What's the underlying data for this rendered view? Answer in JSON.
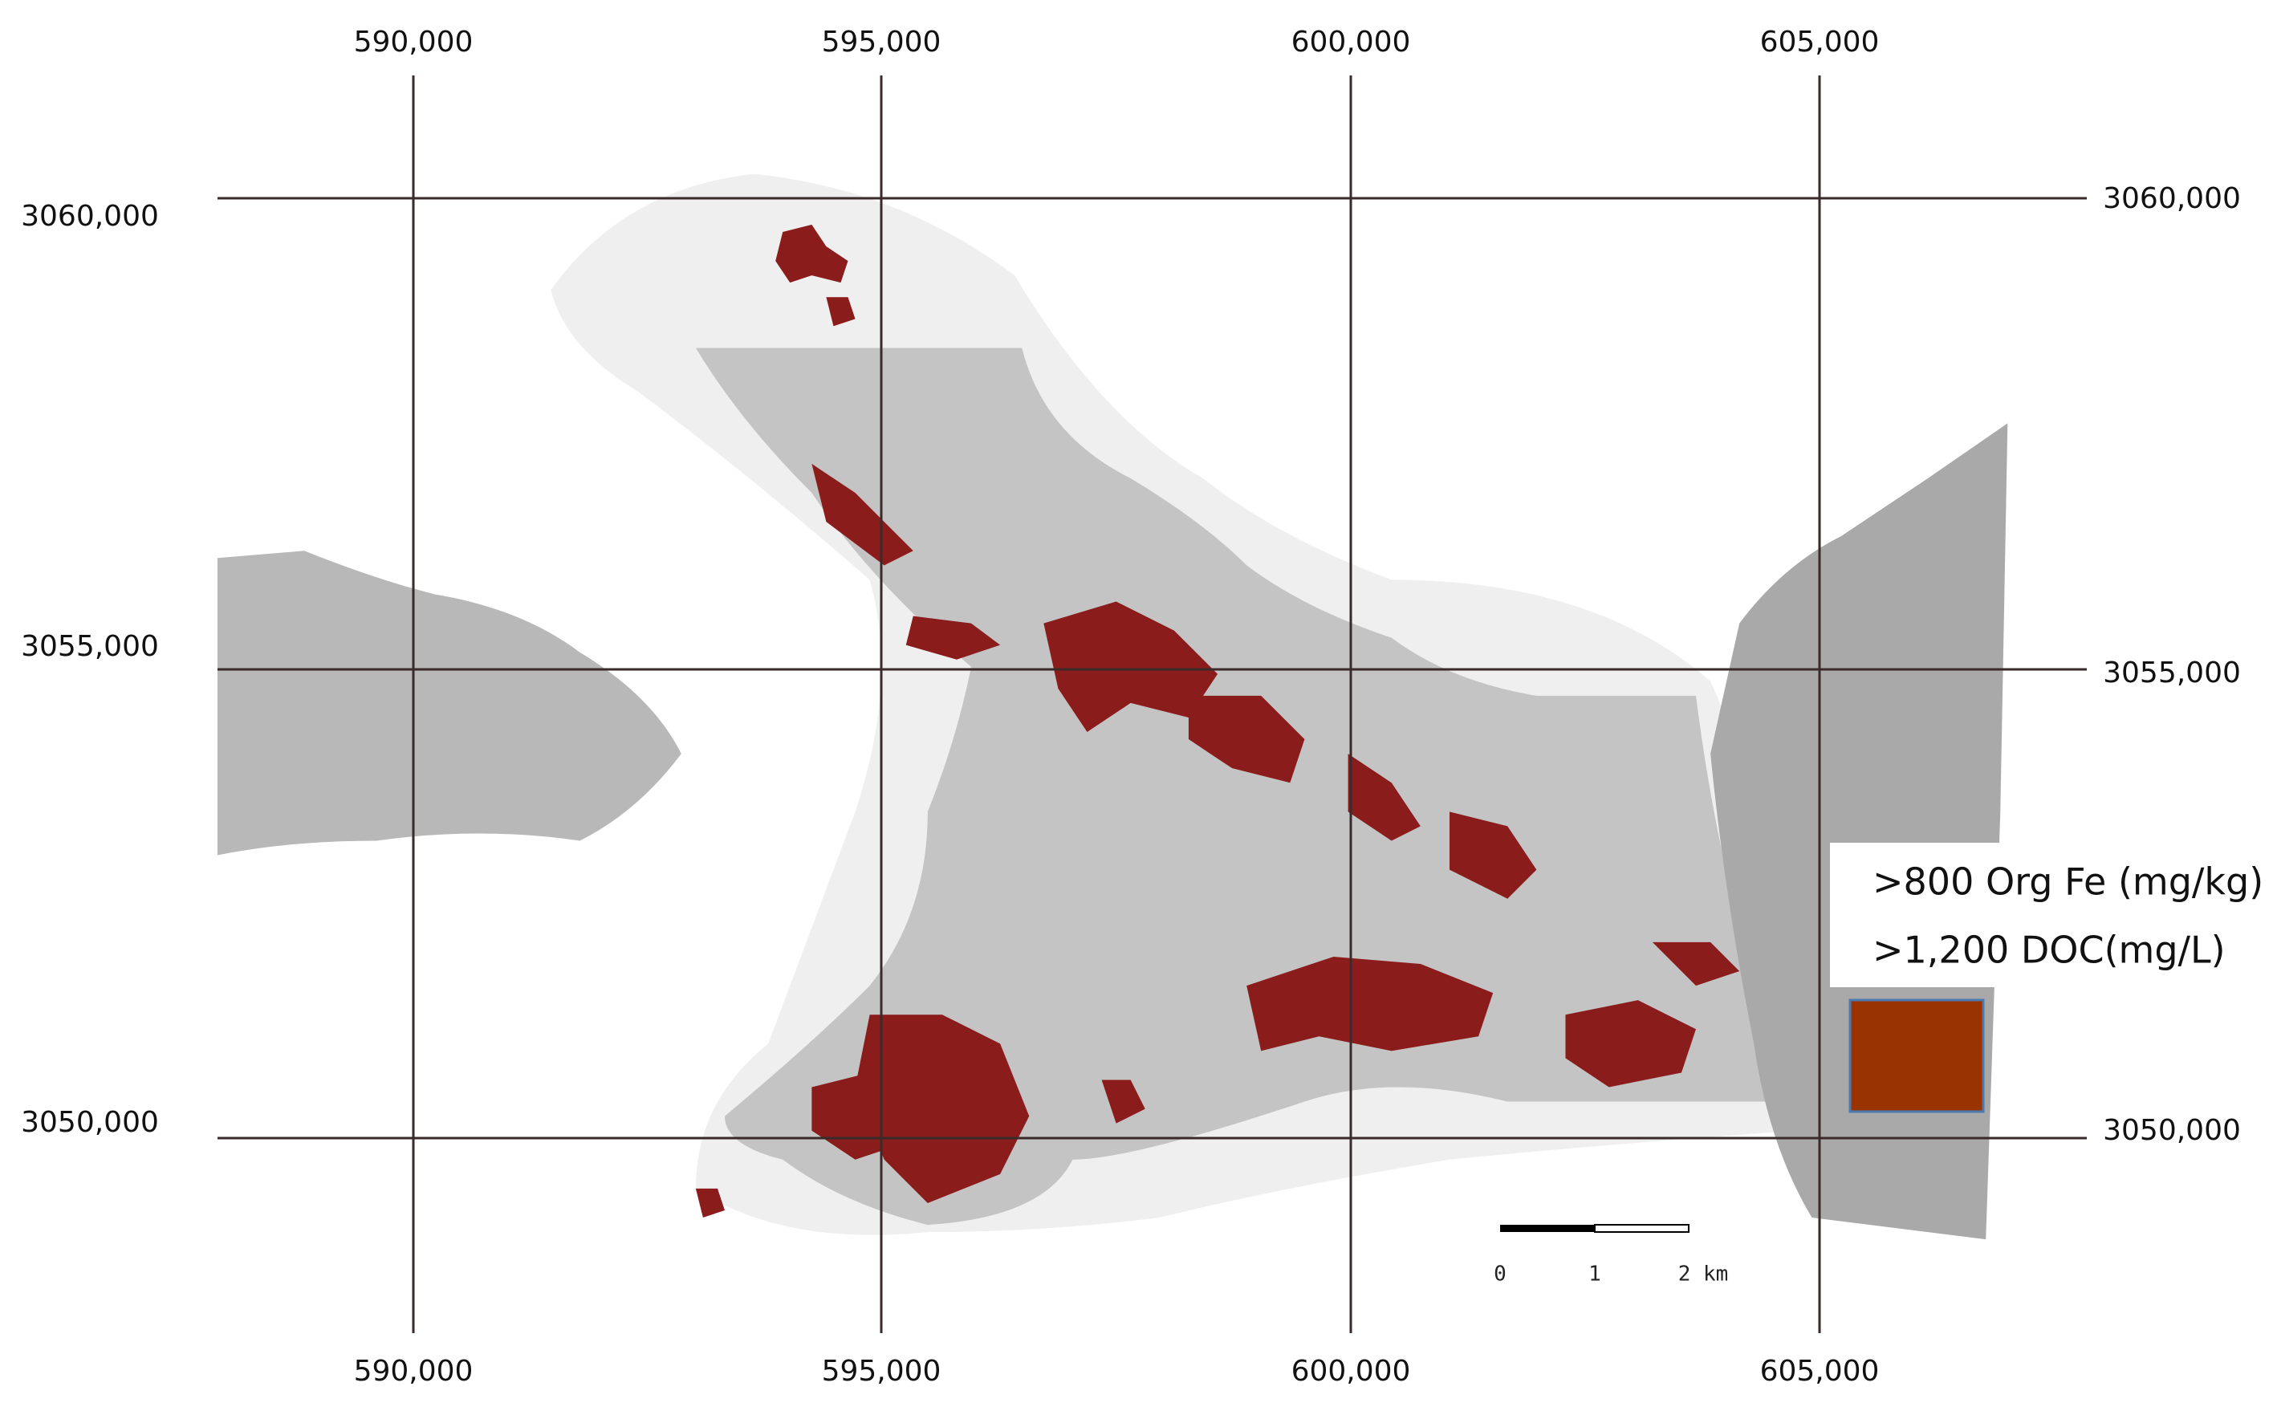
{
  "grid": {
    "easting": [
      "590,000",
      "595,000",
      "600,000",
      "605,000"
    ],
    "northing": [
      "3060,000",
      "3055,000",
      "3050,000"
    ]
  },
  "legend": {
    "lines": [
      ">800 Org Fe (mg/kg)",
      ">1,200 DOC(mg/L)"
    ]
  },
  "scale_bar": {
    "labels": [
      "0",
      "1",
      "2 km"
    ]
  }
}
